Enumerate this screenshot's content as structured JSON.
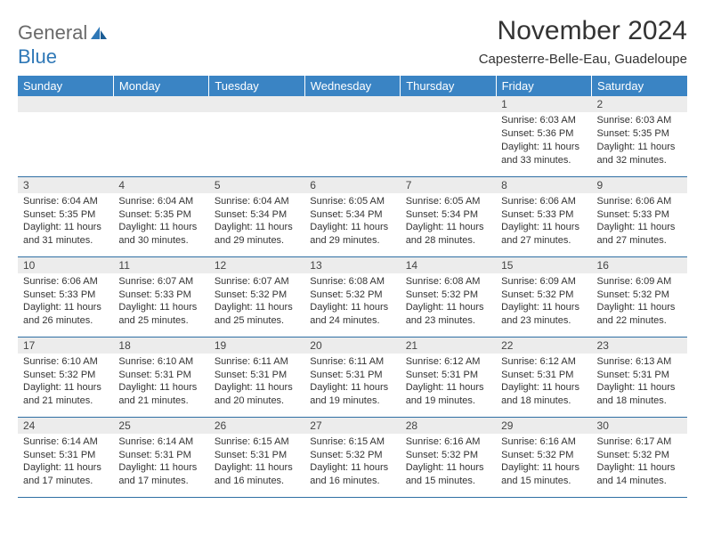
{
  "brand": {
    "part1": "General",
    "part2": "Blue"
  },
  "title": "November 2024",
  "subtitle": "Capesterre-Belle-Eau, Guadeloupe",
  "colors": {
    "header_bg": "#3a84c4",
    "header_text": "#ffffff",
    "daynum_bg": "#ececec",
    "row_border": "#2f6fa3",
    "logo_gray": "#6a6a6a",
    "logo_blue": "#2f78b7"
  },
  "day_headers": [
    "Sunday",
    "Monday",
    "Tuesday",
    "Wednesday",
    "Thursday",
    "Friday",
    "Saturday"
  ],
  "weeks": [
    [
      {
        "n": "",
        "sunrise": "",
        "sunset": "",
        "daylight": ""
      },
      {
        "n": "",
        "sunrise": "",
        "sunset": "",
        "daylight": ""
      },
      {
        "n": "",
        "sunrise": "",
        "sunset": "",
        "daylight": ""
      },
      {
        "n": "",
        "sunrise": "",
        "sunset": "",
        "daylight": ""
      },
      {
        "n": "",
        "sunrise": "",
        "sunset": "",
        "daylight": ""
      },
      {
        "n": "1",
        "sunrise": "Sunrise: 6:03 AM",
        "sunset": "Sunset: 5:36 PM",
        "daylight": "Daylight: 11 hours and 33 minutes."
      },
      {
        "n": "2",
        "sunrise": "Sunrise: 6:03 AM",
        "sunset": "Sunset: 5:35 PM",
        "daylight": "Daylight: 11 hours and 32 minutes."
      }
    ],
    [
      {
        "n": "3",
        "sunrise": "Sunrise: 6:04 AM",
        "sunset": "Sunset: 5:35 PM",
        "daylight": "Daylight: 11 hours and 31 minutes."
      },
      {
        "n": "4",
        "sunrise": "Sunrise: 6:04 AM",
        "sunset": "Sunset: 5:35 PM",
        "daylight": "Daylight: 11 hours and 30 minutes."
      },
      {
        "n": "5",
        "sunrise": "Sunrise: 6:04 AM",
        "sunset": "Sunset: 5:34 PM",
        "daylight": "Daylight: 11 hours and 29 minutes."
      },
      {
        "n": "6",
        "sunrise": "Sunrise: 6:05 AM",
        "sunset": "Sunset: 5:34 PM",
        "daylight": "Daylight: 11 hours and 29 minutes."
      },
      {
        "n": "7",
        "sunrise": "Sunrise: 6:05 AM",
        "sunset": "Sunset: 5:34 PM",
        "daylight": "Daylight: 11 hours and 28 minutes."
      },
      {
        "n": "8",
        "sunrise": "Sunrise: 6:06 AM",
        "sunset": "Sunset: 5:33 PM",
        "daylight": "Daylight: 11 hours and 27 minutes."
      },
      {
        "n": "9",
        "sunrise": "Sunrise: 6:06 AM",
        "sunset": "Sunset: 5:33 PM",
        "daylight": "Daylight: 11 hours and 27 minutes."
      }
    ],
    [
      {
        "n": "10",
        "sunrise": "Sunrise: 6:06 AM",
        "sunset": "Sunset: 5:33 PM",
        "daylight": "Daylight: 11 hours and 26 minutes."
      },
      {
        "n": "11",
        "sunrise": "Sunrise: 6:07 AM",
        "sunset": "Sunset: 5:33 PM",
        "daylight": "Daylight: 11 hours and 25 minutes."
      },
      {
        "n": "12",
        "sunrise": "Sunrise: 6:07 AM",
        "sunset": "Sunset: 5:32 PM",
        "daylight": "Daylight: 11 hours and 25 minutes."
      },
      {
        "n": "13",
        "sunrise": "Sunrise: 6:08 AM",
        "sunset": "Sunset: 5:32 PM",
        "daylight": "Daylight: 11 hours and 24 minutes."
      },
      {
        "n": "14",
        "sunrise": "Sunrise: 6:08 AM",
        "sunset": "Sunset: 5:32 PM",
        "daylight": "Daylight: 11 hours and 23 minutes."
      },
      {
        "n": "15",
        "sunrise": "Sunrise: 6:09 AM",
        "sunset": "Sunset: 5:32 PM",
        "daylight": "Daylight: 11 hours and 23 minutes."
      },
      {
        "n": "16",
        "sunrise": "Sunrise: 6:09 AM",
        "sunset": "Sunset: 5:32 PM",
        "daylight": "Daylight: 11 hours and 22 minutes."
      }
    ],
    [
      {
        "n": "17",
        "sunrise": "Sunrise: 6:10 AM",
        "sunset": "Sunset: 5:32 PM",
        "daylight": "Daylight: 11 hours and 21 minutes."
      },
      {
        "n": "18",
        "sunrise": "Sunrise: 6:10 AM",
        "sunset": "Sunset: 5:31 PM",
        "daylight": "Daylight: 11 hours and 21 minutes."
      },
      {
        "n": "19",
        "sunrise": "Sunrise: 6:11 AM",
        "sunset": "Sunset: 5:31 PM",
        "daylight": "Daylight: 11 hours and 20 minutes."
      },
      {
        "n": "20",
        "sunrise": "Sunrise: 6:11 AM",
        "sunset": "Sunset: 5:31 PM",
        "daylight": "Daylight: 11 hours and 19 minutes."
      },
      {
        "n": "21",
        "sunrise": "Sunrise: 6:12 AM",
        "sunset": "Sunset: 5:31 PM",
        "daylight": "Daylight: 11 hours and 19 minutes."
      },
      {
        "n": "22",
        "sunrise": "Sunrise: 6:12 AM",
        "sunset": "Sunset: 5:31 PM",
        "daylight": "Daylight: 11 hours and 18 minutes."
      },
      {
        "n": "23",
        "sunrise": "Sunrise: 6:13 AM",
        "sunset": "Sunset: 5:31 PM",
        "daylight": "Daylight: 11 hours and 18 minutes."
      }
    ],
    [
      {
        "n": "24",
        "sunrise": "Sunrise: 6:14 AM",
        "sunset": "Sunset: 5:31 PM",
        "daylight": "Daylight: 11 hours and 17 minutes."
      },
      {
        "n": "25",
        "sunrise": "Sunrise: 6:14 AM",
        "sunset": "Sunset: 5:31 PM",
        "daylight": "Daylight: 11 hours and 17 minutes."
      },
      {
        "n": "26",
        "sunrise": "Sunrise: 6:15 AM",
        "sunset": "Sunset: 5:31 PM",
        "daylight": "Daylight: 11 hours and 16 minutes."
      },
      {
        "n": "27",
        "sunrise": "Sunrise: 6:15 AM",
        "sunset": "Sunset: 5:32 PM",
        "daylight": "Daylight: 11 hours and 16 minutes."
      },
      {
        "n": "28",
        "sunrise": "Sunrise: 6:16 AM",
        "sunset": "Sunset: 5:32 PM",
        "daylight": "Daylight: 11 hours and 15 minutes."
      },
      {
        "n": "29",
        "sunrise": "Sunrise: 6:16 AM",
        "sunset": "Sunset: 5:32 PM",
        "daylight": "Daylight: 11 hours and 15 minutes."
      },
      {
        "n": "30",
        "sunrise": "Sunrise: 6:17 AM",
        "sunset": "Sunset: 5:32 PM",
        "daylight": "Daylight: 11 hours and 14 minutes."
      }
    ]
  ]
}
